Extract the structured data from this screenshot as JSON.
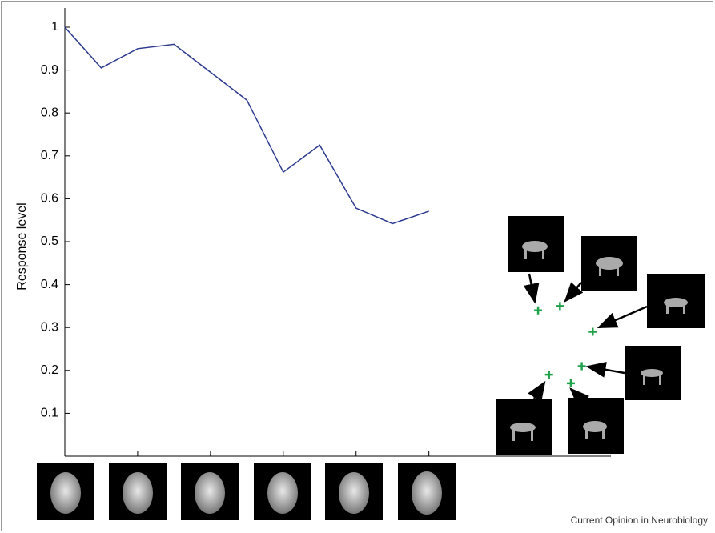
{
  "chart_data": {
    "type": "line",
    "y_label": "Response level",
    "series": [
      {
        "type": "line",
        "color": "#2b3a8f",
        "x": [
          0,
          1,
          2,
          3,
          4,
          5,
          6,
          7,
          8,
          9,
          10
        ],
        "values": [
          1,
          0.905,
          0.95,
          0.96,
          0.895,
          0.83,
          0.662,
          0.725,
          0.578,
          0.542,
          0.571
        ]
      },
      {
        "type": "scatter",
        "color": "#1fa24a",
        "x": [
          13.0,
          13.6,
          14.5,
          14.2,
          13.3,
          13.9
        ],
        "values": [
          0.34,
          0.35,
          0.29,
          0.21,
          0.19,
          0.17
        ]
      }
    ],
    "xlim": [
      0,
      15
    ],
    "ylim": [
      0,
      1
    ],
    "xticks": [
      2,
      4,
      6,
      8,
      10
    ],
    "yticks": [
      0.1,
      0.2,
      0.3,
      0.4,
      0.5,
      0.6,
      0.7,
      0.8,
      0.9,
      1
    ],
    "credit": "Current Opinion in Neurobiology"
  }
}
